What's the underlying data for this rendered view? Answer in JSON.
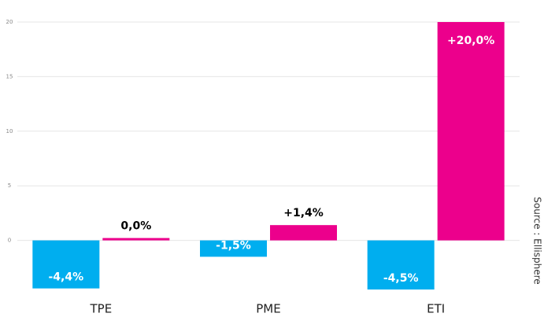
{
  "chart_data": {
    "type": "bar",
    "categories": [
      "TPE",
      "PME",
      "ETI"
    ],
    "series": [
      {
        "color": "#00aeef",
        "values": [
          -4.4,
          -1.5,
          -4.5
        ],
        "value_labels": [
          "-4,4%",
          "-1,5%",
          "-4,5%"
        ]
      },
      {
        "color": "#ec008c",
        "values": [
          0.0,
          1.4,
          20.0
        ],
        "value_labels": [
          "0,0%",
          "+1,4%",
          "+20,0%"
        ]
      }
    ],
    "ylim": [
      -5,
      20
    ],
    "yticks": [
      0,
      5,
      10,
      15,
      20
    ],
    "grid": true,
    "source": "Source : Ellisphere"
  }
}
